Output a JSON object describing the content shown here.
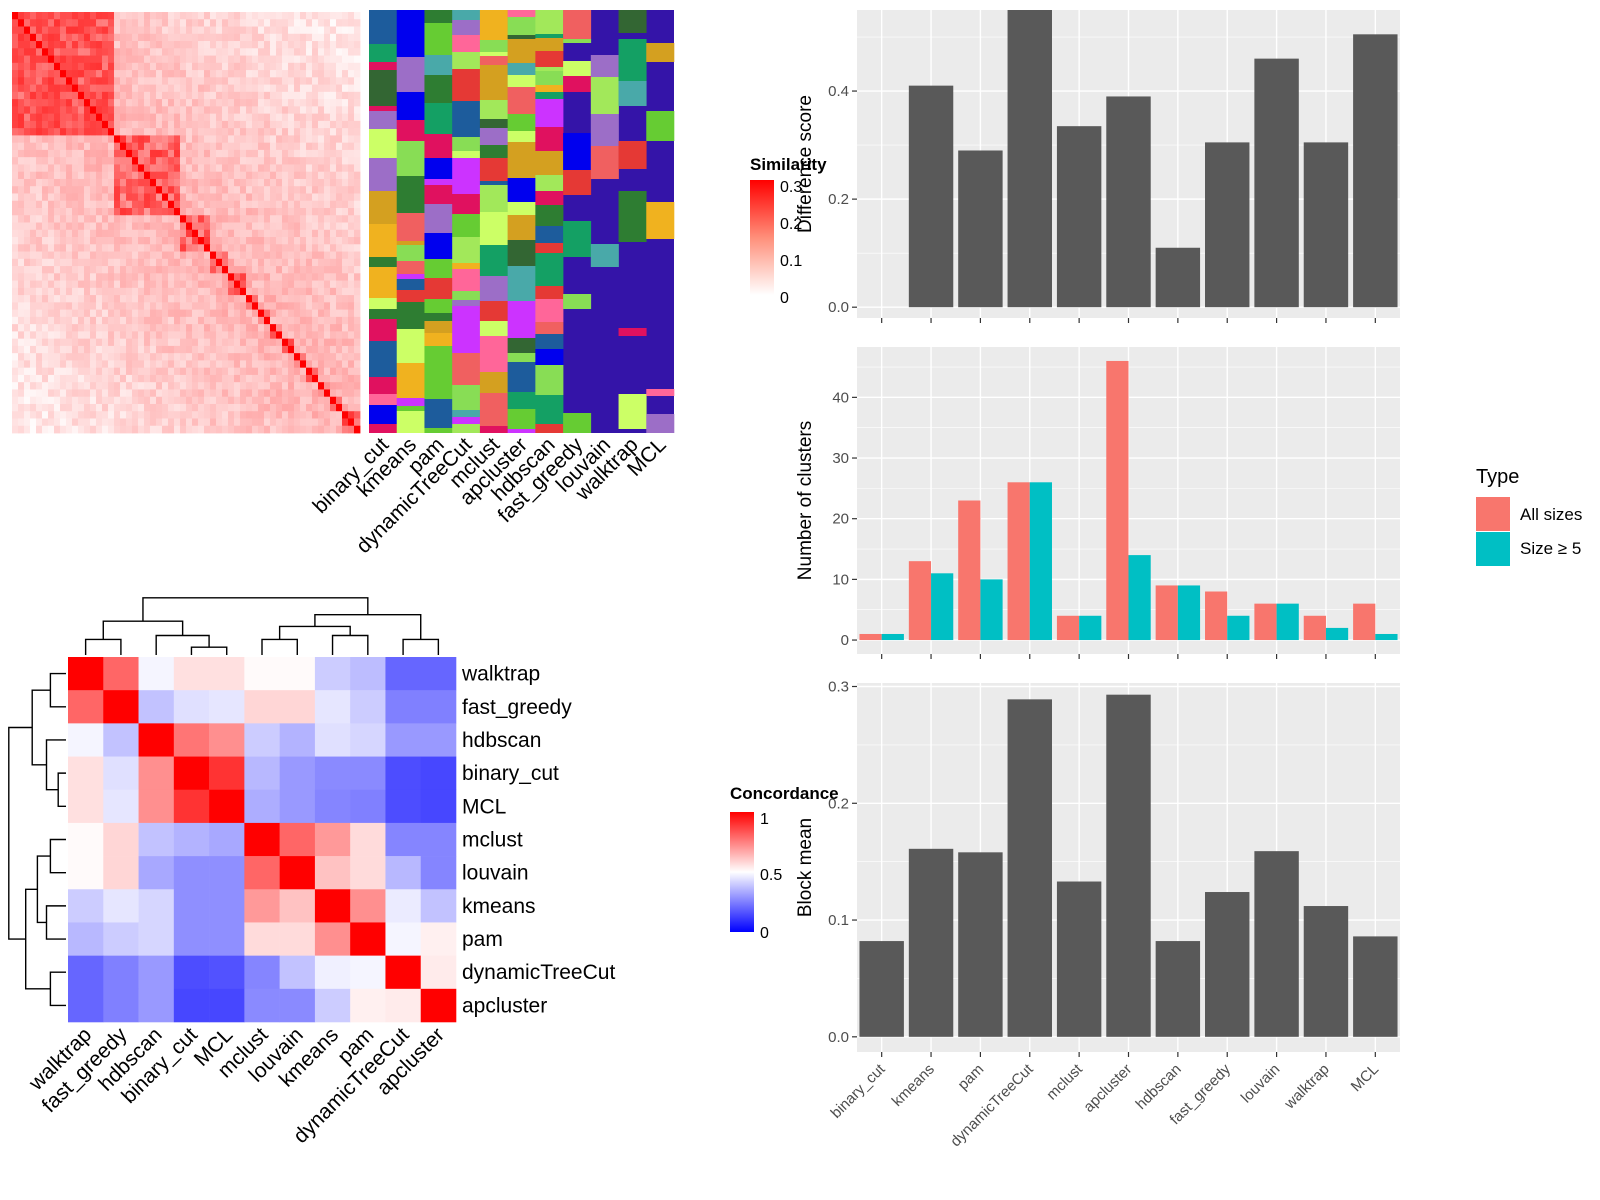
{
  "methods_order_sim": [
    "binary_cut",
    "kmeans",
    "pam",
    "dynamicTreeCut",
    "mclust",
    "apcluster",
    "hdbscan",
    "fast_greedy",
    "louvain",
    "walktrap",
    "MCL"
  ],
  "palette": {
    "bar": "#595959",
    "panel_bg": "#ebebeb",
    "grid": "#ffffff",
    "all_sizes": "#f8766d",
    "size_ge5": "#00bfc4",
    "sim_high": "#ff0000",
    "sim_low": "#ffffff",
    "conc_high": "#ff0000",
    "conc_mid": "#ffffff",
    "conc_low": "#0000ff",
    "cluster_bg": "#3414a8"
  },
  "similarity_legend": {
    "title": "Similarity",
    "ticks": [
      "0.3",
      "0.2",
      "0.1",
      "0"
    ]
  },
  "concordance_legend": {
    "title": "Concordance",
    "ticks": [
      "1",
      "0.5",
      "0"
    ]
  },
  "chart_data": [
    {
      "type": "heatmap",
      "name": "similarity",
      "legend_title": "Similarity",
      "value_range": [
        0,
        0.3
      ],
      "diagonal_blocks": "mostly red diagonal with a large block in upper-left and smaller blocks along the diagonal"
    },
    {
      "type": "heatmap",
      "name": "cluster-assignments",
      "columns": [
        "binary_cut",
        "kmeans",
        "pam",
        "dynamicTreeCut",
        "mclust",
        "apcluster",
        "hdbscan",
        "fast_greedy",
        "louvain",
        "walktrap",
        "MCL"
      ]
    },
    {
      "type": "heatmap",
      "name": "concordance",
      "legend_title": "Concordance",
      "value_range": [
        0,
        1
      ],
      "rows": [
        "walktrap",
        "fast_greedy",
        "hdbscan",
        "binary_cut",
        "MCL",
        "mclust",
        "louvain",
        "kmeans",
        "pam",
        "dynamicTreeCut",
        "apcluster"
      ],
      "columns": [
        "walktrap",
        "fast_greedy",
        "hdbscan",
        "binary_cut",
        "MCL",
        "mclust",
        "louvain",
        "kmeans",
        "pam",
        "dynamicTreeCut",
        "apcluster"
      ],
      "values": [
        [
          1.0,
          0.8,
          0.48,
          0.56,
          0.56,
          0.51,
          0.51,
          0.4,
          0.37,
          0.2,
          0.2
        ],
        [
          0.8,
          1.0,
          0.38,
          0.44,
          0.45,
          0.58,
          0.58,
          0.45,
          0.4,
          0.25,
          0.25
        ],
        [
          0.48,
          0.38,
          1.0,
          0.77,
          0.72,
          0.4,
          0.35,
          0.44,
          0.42,
          0.3,
          0.3
        ],
        [
          0.56,
          0.44,
          0.72,
          1.0,
          0.9,
          0.36,
          0.3,
          0.27,
          0.27,
          0.15,
          0.14
        ],
        [
          0.56,
          0.45,
          0.72,
          0.9,
          1.0,
          0.34,
          0.3,
          0.26,
          0.25,
          0.15,
          0.14
        ],
        [
          0.51,
          0.58,
          0.38,
          0.35,
          0.33,
          1.0,
          0.8,
          0.7,
          0.57,
          0.26,
          0.26
        ],
        [
          0.51,
          0.58,
          0.33,
          0.28,
          0.28,
          0.8,
          1.0,
          0.62,
          0.57,
          0.36,
          0.26
        ],
        [
          0.4,
          0.45,
          0.42,
          0.28,
          0.28,
          0.7,
          0.62,
          1.0,
          0.72,
          0.46,
          0.38
        ],
        [
          0.36,
          0.4,
          0.42,
          0.28,
          0.28,
          0.57,
          0.57,
          0.72,
          1.0,
          0.48,
          0.53
        ],
        [
          0.2,
          0.25,
          0.3,
          0.15,
          0.16,
          0.26,
          0.38,
          0.47,
          0.48,
          1.0,
          0.54
        ],
        [
          0.2,
          0.25,
          0.3,
          0.14,
          0.14,
          0.27,
          0.27,
          0.4,
          0.53,
          0.54,
          1.0
        ]
      ]
    },
    {
      "type": "bar",
      "name": "difference-score",
      "categories": [
        "binary_cut",
        "kmeans",
        "pam",
        "dynamicTreeCut",
        "mclust",
        "apcluster",
        "hdbscan",
        "fast_greedy",
        "louvain",
        "walktrap",
        "MCL"
      ],
      "values": [
        0.0,
        0.41,
        0.29,
        0.55,
        0.335,
        0.39,
        0.11,
        0.305,
        0.46,
        0.305,
        0.505
      ],
      "ylabel": "Difference score",
      "ylim": [
        -0.02,
        0.55
      ],
      "yticks": [
        "0.0",
        "0.2",
        "0.4"
      ],
      "grid": true
    },
    {
      "type": "bar",
      "name": "number-of-clusters",
      "categories": [
        "binary_cut",
        "kmeans",
        "pam",
        "dynamicTreeCut",
        "mclust",
        "apcluster",
        "hdbscan",
        "fast_greedy",
        "louvain",
        "walktrap",
        "MCL"
      ],
      "series": [
        {
          "name": "All sizes",
          "values": [
            1,
            13,
            23,
            26,
            4,
            46,
            9,
            8,
            6,
            4,
            6
          ]
        },
        {
          "name": "Size ≥ 5",
          "values": [
            1,
            11,
            10,
            26,
            4,
            14,
            9,
            4,
            6,
            2,
            1
          ]
        }
      ],
      "ylabel": "Number of clusters",
      "ylim": [
        -2.3,
        48.3
      ],
      "yticks": [
        "0",
        "10",
        "20",
        "30",
        "40"
      ],
      "legend_title": "Type",
      "legend_position": "right",
      "grid": true
    },
    {
      "type": "bar",
      "name": "block-mean",
      "categories": [
        "binary_cut",
        "kmeans",
        "pam",
        "dynamicTreeCut",
        "mclust",
        "apcluster",
        "hdbscan",
        "fast_greedy",
        "louvain",
        "walktrap",
        "MCL"
      ],
      "values": [
        0.082,
        0.161,
        0.158,
        0.289,
        0.133,
        0.293,
        0.082,
        0.124,
        0.159,
        0.112,
        0.086
      ],
      "ylabel": "Block mean",
      "ylim": [
        -0.013,
        0.303
      ],
      "yticks": [
        "0.0",
        "0.1",
        "0.2",
        "0.3"
      ],
      "grid": true
    }
  ]
}
